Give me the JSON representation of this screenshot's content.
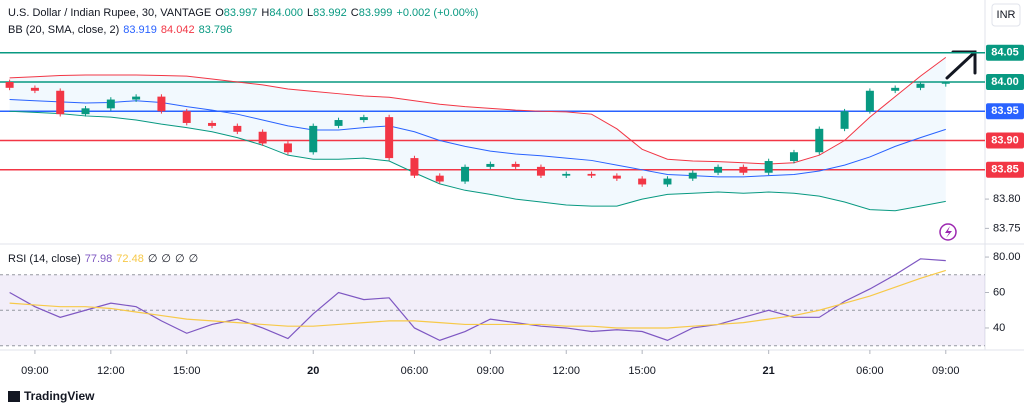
{
  "header": {
    "symbol": "U.S. Dollar / Indian Rupee, 30, VANTAGE",
    "ohlc": [
      {
        "key": "O",
        "value": "83.997"
      },
      {
        "key": "H",
        "value": "84.000"
      },
      {
        "key": "L",
        "value": "83.992"
      },
      {
        "key": "C",
        "value": "83.999"
      }
    ],
    "change": "+0.002 (+0.00%)",
    "currency": "INR",
    "brand": "TradingView"
  },
  "chart_data": [
    {
      "type": "candlestick",
      "indicator": "BB (20, SMA, close, 2)",
      "indicator_values": [
        {
          "value": "83.919",
          "color": "#2962ff"
        },
        {
          "value": "84.042",
          "color": "#f23645"
        },
        {
          "value": "83.796",
          "color": "#089981"
        }
      ],
      "up_color": "#089981",
      "down_color": "#f23645",
      "x": [
        0,
        1,
        2,
        3,
        4,
        5,
        6,
        7,
        8,
        9,
        10,
        11,
        12,
        13,
        14,
        15,
        16,
        17,
        18,
        19,
        20,
        21,
        22,
        23,
        24,
        25,
        26,
        27,
        28,
        29,
        30,
        31,
        32,
        33,
        34,
        35,
        36,
        37
      ],
      "open": [
        84.0,
        83.99,
        83.985,
        83.945,
        83.955,
        83.97,
        83.975,
        83.95,
        83.93,
        83.925,
        83.915,
        83.895,
        83.88,
        83.925,
        83.935,
        83.94,
        83.87,
        83.84,
        83.83,
        83.855,
        83.86,
        83.855,
        83.84,
        83.843,
        83.84,
        83.835,
        83.825,
        83.835,
        83.845,
        83.855,
        83.845,
        83.865,
        83.88,
        83.92,
        83.95,
        83.985,
        83.99,
        83.997
      ],
      "high": [
        84.004,
        83.994,
        83.989,
        83.959,
        83.974,
        83.979,
        83.979,
        83.954,
        83.934,
        83.929,
        83.919,
        83.899,
        83.929,
        83.939,
        83.944,
        83.944,
        83.874,
        83.844,
        83.859,
        83.864,
        83.864,
        83.859,
        83.847,
        83.847,
        83.844,
        83.839,
        83.839,
        83.849,
        83.859,
        83.859,
        83.869,
        83.884,
        83.924,
        83.954,
        83.989,
        83.994,
        83.999,
        84.0
      ],
      "low": [
        83.986,
        83.981,
        83.941,
        83.941,
        83.951,
        83.966,
        83.946,
        83.926,
        83.921,
        83.911,
        83.891,
        83.876,
        83.876,
        83.921,
        83.931,
        83.866,
        83.836,
        83.826,
        83.826,
        83.851,
        83.851,
        83.836,
        83.836,
        83.836,
        83.831,
        83.821,
        83.821,
        83.831,
        83.841,
        83.841,
        83.841,
        83.861,
        83.876,
        83.916,
        83.946,
        83.981,
        83.986,
        83.992
      ],
      "close": [
        83.99,
        83.985,
        83.945,
        83.955,
        83.97,
        83.975,
        83.95,
        83.93,
        83.925,
        83.915,
        83.895,
        83.88,
        83.925,
        83.935,
        83.94,
        83.87,
        83.84,
        83.83,
        83.855,
        83.86,
        83.855,
        83.84,
        83.843,
        83.84,
        83.835,
        83.825,
        83.835,
        83.845,
        83.855,
        83.845,
        83.865,
        83.88,
        83.92,
        83.95,
        83.985,
        83.99,
        83.997,
        83.999
      ],
      "series": [
        {
          "color": "#f23645",
          "values": [
            84.007,
            84.009,
            84.011,
            84.012,
            84.012,
            84.012,
            84.011,
            84.01,
            84.005,
            84.0,
            83.995,
            83.988,
            83.984,
            83.98,
            83.976,
            83.974,
            83.968,
            83.962,
            83.958,
            83.955,
            83.952,
            83.95,
            83.949,
            83.945,
            83.92,
            83.885,
            83.868,
            83.865,
            83.864,
            83.862,
            83.86,
            83.862,
            83.875,
            83.9,
            83.94,
            83.975,
            84.01,
            84.042
          ]
        },
        {
          "color": "#2962ff",
          "values": [
            83.97,
            83.968,
            83.966,
            83.964,
            83.965,
            83.968,
            83.965,
            83.958,
            83.952,
            83.945,
            83.935,
            83.925,
            83.918,
            83.918,
            83.922,
            83.925,
            83.915,
            83.9,
            83.89,
            83.882,
            83.877,
            83.874,
            83.87,
            83.866,
            83.858,
            83.85,
            83.842,
            83.84,
            83.838,
            83.838,
            83.84,
            83.842,
            83.848,
            83.858,
            83.872,
            83.89,
            83.905,
            83.919
          ]
        },
        {
          "color": "#089981",
          "values": [
            83.95,
            83.948,
            83.946,
            83.942,
            83.94,
            83.935,
            83.928,
            83.922,
            83.915,
            83.905,
            83.892,
            83.875,
            83.868,
            83.868,
            83.87,
            83.865,
            83.845,
            83.826,
            83.815,
            83.808,
            83.8,
            83.795,
            83.79,
            83.788,
            83.788,
            83.8,
            83.808,
            83.81,
            83.812,
            83.81,
            83.812,
            83.81,
            83.805,
            83.795,
            83.782,
            83.78,
            83.788,
            83.796
          ]
        }
      ],
      "hlines": [
        {
          "value": 84.05,
          "color": "#089981"
        },
        {
          "value": 84.0,
          "label": "84.00",
          "color": "#089981"
        },
        {
          "value": 83.95,
          "color": "#2962ff"
        },
        {
          "value": 83.9,
          "label": "83.90",
          "color": "#f23645"
        },
        {
          "value": 83.85,
          "color": "#f23645"
        }
      ],
      "xlim": [
        -0.38,
        38.55
      ],
      "ylim": [
        83.725,
        84.14
      ],
      "yticks": [
        {
          "value": 83.8,
          "label": "83.80"
        },
        83.75
      ],
      "xticks": [
        {
          "value": 1,
          "label": "09:00"
        },
        {
          "value": 4,
          "label": "12:00"
        },
        {
          "value": 7,
          "label": "15:00"
        },
        {
          "value": 12,
          "label": "20"
        },
        {
          "value": 16,
          "label": "06:00"
        },
        {
          "value": 19,
          "label": "09:00"
        },
        {
          "value": 22,
          "label": "12:00"
        },
        {
          "value": 25,
          "label": "15:00"
        },
        {
          "value": 30,
          "label": "21"
        },
        {
          "value": 34,
          "label": "06:00"
        },
        {
          "value": 37,
          "label": "09:00"
        }
      ]
    },
    {
      "type": "line",
      "indicator": "RSI (14, close)",
      "indicator_values": [
        {
          "value": "77.98",
          "color": "#7e57c2"
        },
        {
          "value": "72.48",
          "color": "#f7c948"
        },
        {
          "value": "∅",
          "color": "#131722"
        },
        {
          "value": "∅",
          "color": "#131722"
        },
        {
          "value": "∅",
          "color": "#131722"
        },
        {
          "value": "∅",
          "color": "#131722"
        }
      ],
      "x": [
        0,
        1,
        2,
        3,
        4,
        5,
        6,
        7,
        8,
        9,
        10,
        11,
        12,
        13,
        14,
        15,
        16,
        17,
        18,
        19,
        20,
        21,
        22,
        23,
        24,
        25,
        26,
        27,
        28,
        29,
        30,
        31,
        32,
        33,
        34,
        35,
        36,
        37
      ],
      "series": [
        {
          "color": "#7e57c2",
          "values": [
            60,
            52,
            46,
            50,
            54,
            52,
            44,
            37,
            42,
            45,
            40,
            34,
            48,
            60,
            56,
            57,
            40,
            33,
            38,
            45,
            43,
            41,
            40,
            38,
            39,
            38,
            33,
            40,
            42,
            46,
            50,
            46,
            46,
            55,
            62,
            70,
            79,
            77.98
          ]
        },
        {
          "color": "#f7c948",
          "values": [
            54,
            53,
            52,
            52,
            51,
            49,
            47,
            45,
            44,
            43,
            42,
            41,
            41,
            42,
            43,
            44,
            44,
            43,
            42,
            42,
            42,
            42,
            41,
            41,
            40,
            40,
            40,
            41,
            42,
            43,
            45,
            47,
            50,
            54,
            58,
            63,
            68,
            72.48
          ]
        }
      ],
      "bands": [
        70,
        50,
        30
      ],
      "xlim": [
        -0.38,
        38.55
      ],
      "ylim": [
        28.7,
        86.8
      ],
      "yticks": [
        40,
        60,
        {
          "value": 80,
          "label": "80.00"
        }
      ]
    }
  ]
}
